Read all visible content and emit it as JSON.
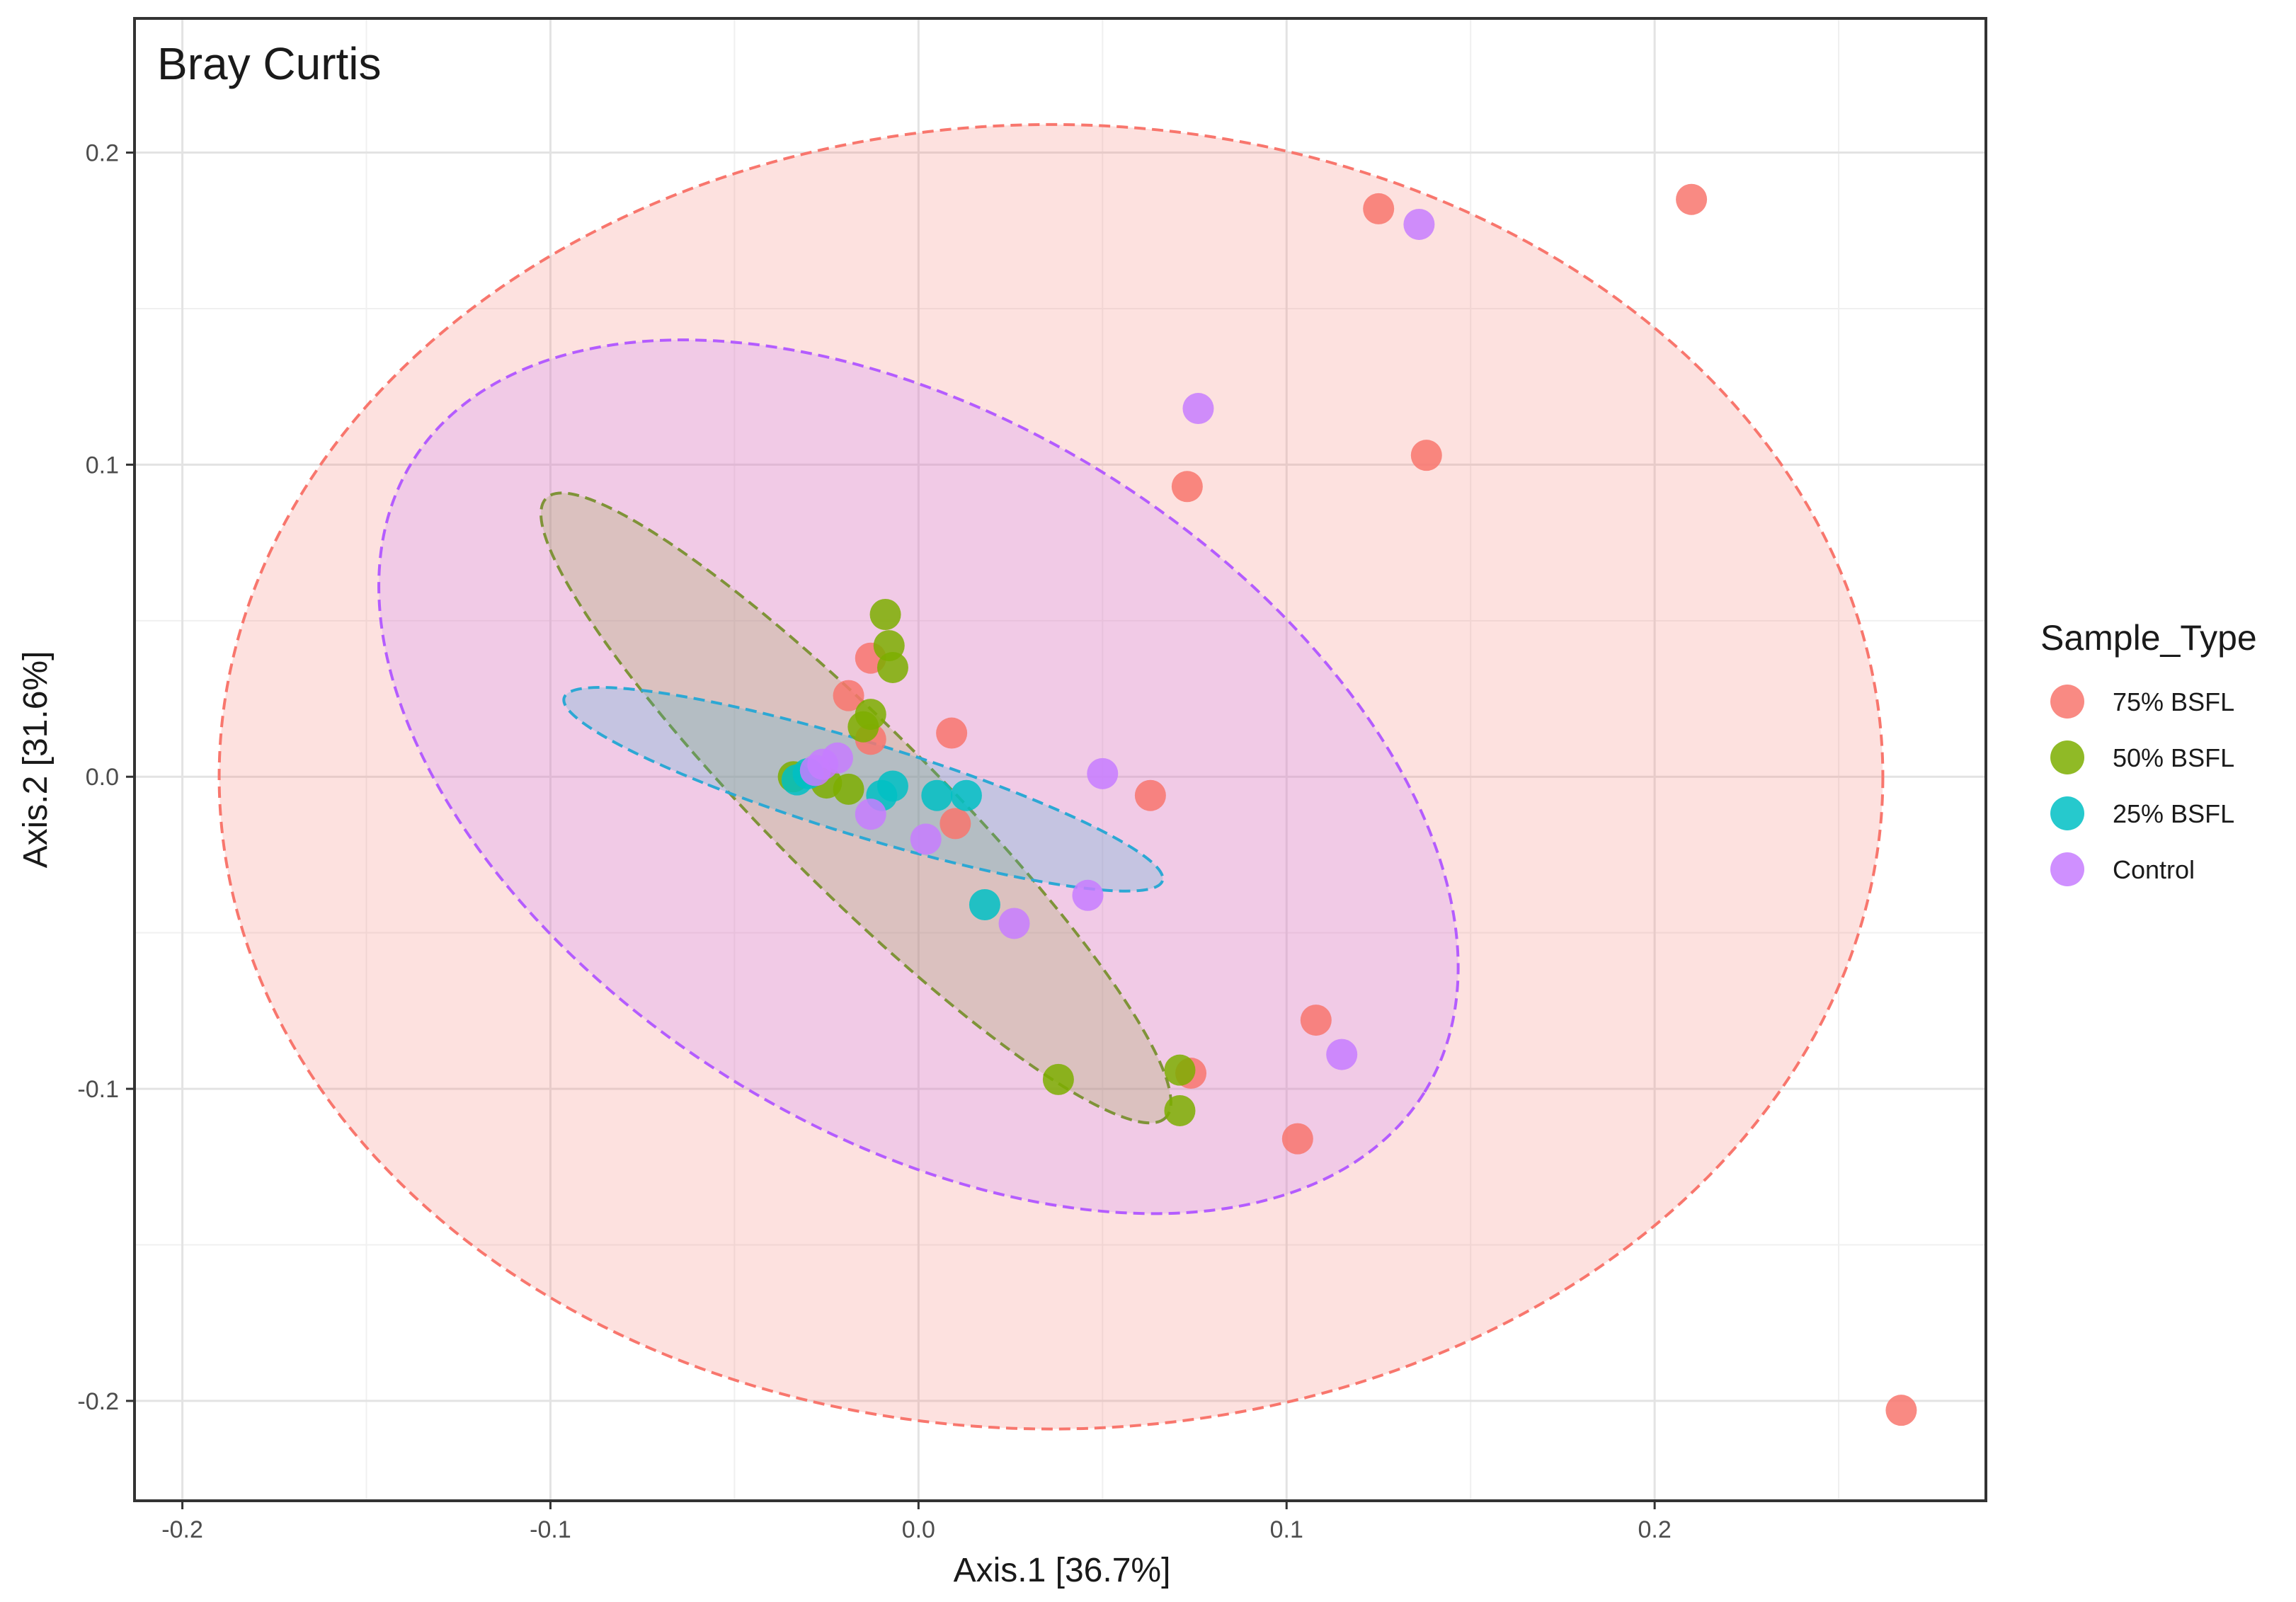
{
  "chart_data": {
    "type": "scatter",
    "title": "Bray Curtis",
    "xlabel": "Axis.1   [36.7%]",
    "ylabel": "Axis.2   [31.6%]",
    "xlim": [
      -0.213,
      0.29
    ],
    "ylim": [
      -0.232,
      0.243
    ],
    "x_ticks": [
      -0.2,
      -0.1,
      0.0,
      0.1,
      0.2
    ],
    "x_tick_labels": [
      "-0.2",
      "-0.1",
      "0.0",
      "0.1",
      "0.2"
    ],
    "y_ticks": [
      0.2,
      0.1,
      0.0,
      -0.1,
      -0.2
    ],
    "y_tick_labels": [
      "0.2",
      "0.1",
      "0.0",
      "-0.1",
      "-0.2"
    ],
    "grid": true,
    "legend": {
      "title": "Sample_Type",
      "position": "right",
      "entries": [
        "75% BSFL",
        "50% BSFL",
        "25% BSFL",
        "Control"
      ]
    },
    "series": [
      {
        "name": "75% BSFL",
        "color": "#F8766D",
        "points": [
          [
            0.125,
            0.182
          ],
          [
            0.21,
            0.185
          ],
          [
            0.138,
            0.103
          ],
          [
            0.073,
            0.093
          ],
          [
            -0.019,
            0.026
          ],
          [
            -0.013,
            0.038
          ],
          [
            -0.013,
            0.012
          ],
          [
            0.009,
            0.014
          ],
          [
            0.063,
            -0.006
          ],
          [
            0.01,
            -0.015
          ],
          [
            0.108,
            -0.078
          ],
          [
            0.074,
            -0.095
          ],
          [
            0.103,
            -0.116
          ],
          [
            0.267,
            -0.203
          ]
        ],
        "ellipse": {
          "center": [
            0.036,
            0.0
          ],
          "radii": [
            0.226,
            0.209
          ],
          "rotation_deg": 0
        }
      },
      {
        "name": "50% BSFL",
        "color": "#7CAE00",
        "points": [
          [
            -0.009,
            0.052
          ],
          [
            -0.008,
            0.042
          ],
          [
            -0.007,
            0.035
          ],
          [
            -0.013,
            0.02
          ],
          [
            -0.015,
            0.016
          ],
          [
            -0.034,
            0.0
          ],
          [
            -0.025,
            -0.002
          ],
          [
            -0.019,
            -0.004
          ],
          [
            0.038,
            -0.097
          ],
          [
            0.071,
            -0.094
          ],
          [
            0.071,
            -0.107
          ]
        ],
        "ellipse": {
          "center": [
            -0.017,
            -0.01
          ],
          "radii": [
            0.119,
            0.026
          ],
          "rotation_deg": 45
        }
      },
      {
        "name": "25% BSFL",
        "color": "#00BFC4",
        "points": [
          [
            -0.033,
            -0.001
          ],
          [
            -0.03,
            0.001
          ],
          [
            -0.01,
            -0.006
          ],
          [
            -0.007,
            -0.003
          ],
          [
            0.005,
            -0.006
          ],
          [
            0.013,
            -0.006
          ],
          [
            0.018,
            -0.041
          ]
        ],
        "ellipse": {
          "center": [
            -0.015,
            -0.004
          ],
          "radii": [
            0.085,
            0.015
          ],
          "rotation_deg": 17
        }
      },
      {
        "name": "Control",
        "color": "#C77CFF",
        "points": [
          [
            0.136,
            0.177
          ],
          [
            0.076,
            0.118
          ],
          [
            0.05,
            0.001
          ],
          [
            -0.026,
            0.004
          ],
          [
            -0.022,
            0.006
          ],
          [
            -0.028,
            0.002
          ],
          [
            -0.013,
            -0.012
          ],
          [
            0.002,
            -0.02
          ],
          [
            0.026,
            -0.047
          ],
          [
            0.046,
            -0.038
          ],
          [
            0.115,
            -0.089
          ]
        ],
        "ellipse": {
          "center": [
            0.0,
            0.0
          ],
          "radii": [
            0.162,
            0.114
          ],
          "rotation_deg": 32
        }
      }
    ]
  }
}
